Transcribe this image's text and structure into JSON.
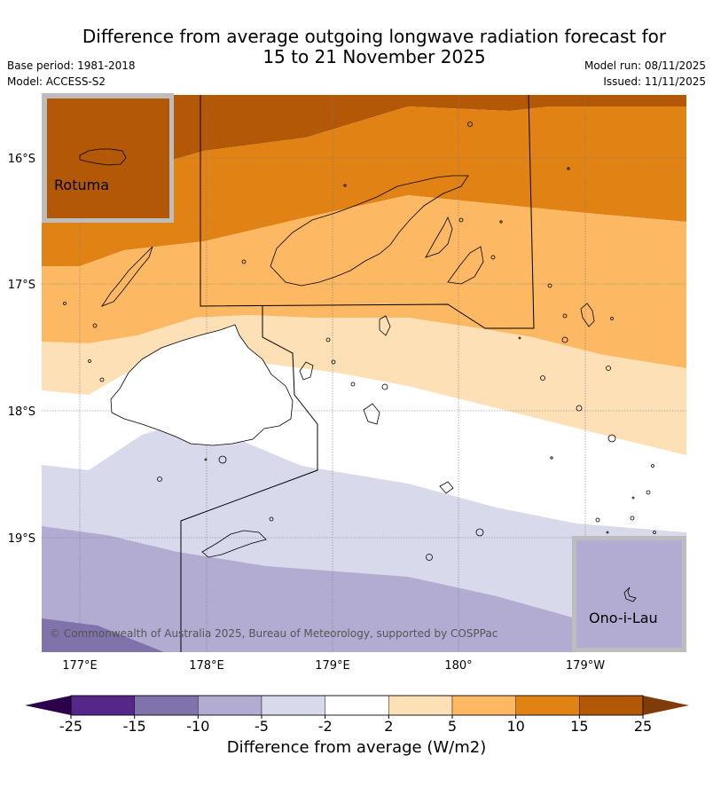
{
  "title": {
    "line1": "Difference from average outgoing longwave radiation forecast for",
    "line2": "15 to 21 November 2025"
  },
  "meta": {
    "base_period": "Base period: 1981-2018",
    "model": "Model: ACCESS-S2",
    "model_run": "Model run: 08/11/2025",
    "issued": "Issued: 11/11/2025"
  },
  "map": {
    "lat_labels": [
      "16°S",
      "17°S",
      "18°S",
      "19°S"
    ],
    "lon_labels": [
      "177°E",
      "178°E",
      "179°E",
      "180°",
      "179°W"
    ],
    "copyright": "© Commonwealth of Australia 2025, Bureau of Meteorology, supported by COSPPac",
    "insets": [
      {
        "name": "Rotuma",
        "fill": "#b35806"
      },
      {
        "name": "Ono-i-Lau",
        "fill": "#b2abd2"
      }
    ]
  },
  "legend": {
    "title": "Difference from average (W/m2)",
    "ticks": [
      "-25",
      "-15",
      "-10",
      "-5",
      "-2",
      "2",
      "5",
      "10",
      "15",
      "25"
    ],
    "colors": [
      "#542788",
      "#8073ac",
      "#b2abd2",
      "#d8daeb",
      "#ffffff",
      "#fee0b6",
      "#fdb863",
      "#e08214",
      "#b35806"
    ],
    "under_color": "#2d004b",
    "over_color": "#7f3b08"
  }
}
